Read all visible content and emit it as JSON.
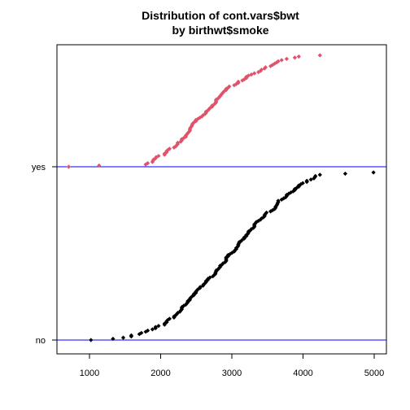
{
  "chart_data": {
    "type": "scatter",
    "title": "Distribution of cont.vars$bwt",
    "subtitle": "by birthwt$smoke",
    "xlabel": "",
    "ylabel": "",
    "xlim": [
      1000,
      5000
    ],
    "x_ticks": [
      1000,
      2000,
      3000,
      4000,
      5000
    ],
    "grid": false,
    "legend": "none",
    "groups": [
      "no",
      "yes"
    ],
    "reference_line_color": "#0000ff",
    "series": [
      {
        "group": "no",
        "color": "#000000",
        "values": [
          1021,
          1330,
          1474,
          1588,
          1588,
          1701,
          1729,
          1790,
          1818,
          1885,
          1928,
          1928,
          1970,
          2055,
          2055,
          2084,
          2084,
          2100,
          2125,
          2187,
          2187,
          2211,
          2225,
          2240,
          2270,
          2282,
          2296,
          2296,
          2301,
          2325,
          2353,
          2367,
          2381,
          2381,
          2410,
          2410,
          2424,
          2442,
          2466,
          2466,
          2495,
          2495,
          2509,
          2523,
          2551,
          2557,
          2594,
          2600,
          2622,
          2637,
          2637,
          2663,
          2665,
          2693,
          2733,
          2750,
          2769,
          2769,
          2778,
          2782,
          2807,
          2821,
          2835,
          2836,
          2863,
          2877,
          2906,
          2920,
          2920,
          2920,
          2920,
          2948,
          2948,
          2977,
          3005,
          3033,
          3042,
          3062,
          3062,
          3080,
          3090,
          3090,
          3100,
          3104,
          3132,
          3147,
          3175,
          3175,
          3203,
          3203,
          3225,
          3232,
          3234,
          3260,
          3274,
          3303,
          3317,
          3317,
          3317,
          3331,
          3345,
          3374,
          3402,
          3416,
          3444,
          3459,
          3460,
          3473,
          3487,
          3544,
          3572,
          3600,
          3614,
          3614,
          3629,
          3637,
          3643,
          3651,
          3651,
          3699,
          3728,
          3756,
          3770,
          3770,
          3799,
          3827,
          3860,
          3884,
          3884,
          3912,
          3941,
          3941,
          3969,
          3997,
          4054,
          4054,
          4111,
          4153,
          4167,
          4174,
          4238,
          4593,
          4990
        ]
      },
      {
        "group": "yes",
        "color": "#df536b",
        "values": [
          709,
          1135,
          1790,
          1818,
          1885,
          1893,
          1899,
          1928,
          1936,
          1970,
          2055,
          2055,
          2082,
          2084,
          2100,
          2125,
          2187,
          2211,
          2225,
          2240,
          2240,
          2282,
          2296,
          2296,
          2325,
          2353,
          2353,
          2367,
          2381,
          2395,
          2410,
          2410,
          2414,
          2424,
          2438,
          2442,
          2450,
          2466,
          2495,
          2495,
          2523,
          2551,
          2580,
          2594,
          2622,
          2637,
          2637,
          2663,
          2679,
          2693,
          2722,
          2722,
          2750,
          2769,
          2778,
          2778,
          2778,
          2807,
          2821,
          2836,
          2849,
          2863,
          2877,
          2892,
          2920,
          2920,
          2948,
          2963,
          3033,
          3062,
          3090,
          3090,
          3147,
          3175,
          3203,
          3203,
          3232,
          3274,
          3317,
          3374,
          3402,
          3416,
          3459,
          3473,
          3544,
          3572,
          3600,
          3629,
          3651,
          3699,
          3770,
          3884,
          3941,
          4238
        ]
      }
    ]
  }
}
